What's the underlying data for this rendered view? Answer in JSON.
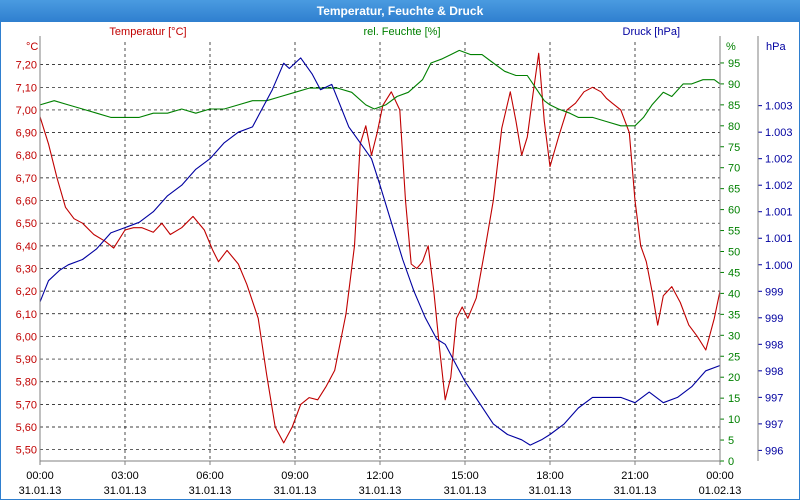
{
  "window": {
    "title": "Temperatur, Feuchte & Druck"
  },
  "colors": {
    "temperature": "#c00000",
    "humidity": "#008000",
    "pressure": "#0000a0",
    "grid": "#000000",
    "axis": "#808080"
  },
  "chart_data": {
    "type": "line",
    "title": "Temperatur, Feuchte & Druck",
    "grid": true,
    "x_ticks": [
      {
        "time": "00:00",
        "date": "31.01.13"
      },
      {
        "time": "03:00",
        "date": "31.01.13"
      },
      {
        "time": "06:00",
        "date": "31.01.13"
      },
      {
        "time": "09:00",
        "date": "31.01.13"
      },
      {
        "time": "12:00",
        "date": "31.01.13"
      },
      {
        "time": "15:00",
        "date": "31.01.13"
      },
      {
        "time": "18:00",
        "date": "31.01.13"
      },
      {
        "time": "21:00",
        "date": "31.01.13"
      },
      {
        "time": "00:00",
        "date": "01.02.13"
      }
    ],
    "x_range_hours": [
      0,
      24
    ],
    "axes": {
      "temperature": {
        "label": "Temperatur [°C]",
        "unit": "°C",
        "range": [
          5.45,
          7.3
        ],
        "ticks": [
          "5,50",
          "5,60",
          "5,70",
          "5,80",
          "5,90",
          "6,00",
          "6,10",
          "6,20",
          "6,30",
          "6,40",
          "6,50",
          "6,60",
          "6,70",
          "6,80",
          "6,90",
          "7,00",
          "7,10",
          "7,20"
        ],
        "tick_values": [
          5.5,
          5.6,
          5.7,
          5.8,
          5.9,
          6.0,
          6.1,
          6.2,
          6.3,
          6.4,
          6.5,
          6.6,
          6.7,
          6.8,
          6.9,
          7.0,
          7.1,
          7.2
        ]
      },
      "humidity": {
        "label": "rel. Feuchte [%]",
        "unit": "%",
        "range": [
          0,
          100
        ],
        "ticks": [
          "0",
          "5",
          "10",
          "15",
          "20",
          "25",
          "30",
          "35",
          "40",
          "45",
          "50",
          "55",
          "60",
          "65",
          "70",
          "75",
          "80",
          "85",
          "90",
          "95"
        ],
        "tick_values": [
          0,
          5,
          10,
          15,
          20,
          25,
          30,
          35,
          40,
          45,
          50,
          55,
          60,
          65,
          70,
          75,
          80,
          85,
          90,
          95
        ]
      },
      "pressure": {
        "label": "Druck [hPa]",
        "unit": "hPa",
        "range": [
          995.8,
          1003.7
        ],
        "ticks": [
          "996",
          "997",
          "997",
          "998",
          "998",
          "999",
          "999",
          "1.000",
          "1.001",
          "1.001",
          "1.002",
          "1.002",
          "1.003",
          "1.003"
        ],
        "tick_values": [
          996,
          996.5,
          997,
          997.5,
          998,
          998.5,
          999,
          999.5,
          1000,
          1000.5,
          1001,
          1001.5,
          1002,
          1002.5
        ]
      }
    },
    "series": [
      {
        "name": "Temperatur [°C]",
        "axis": "temperature",
        "points": [
          [
            0,
            6.97
          ],
          [
            0.3,
            6.85
          ],
          [
            0.6,
            6.7
          ],
          [
            0.9,
            6.57
          ],
          [
            1.2,
            6.52
          ],
          [
            1.5,
            6.5
          ],
          [
            1.9,
            6.45
          ],
          [
            2.3,
            6.42
          ],
          [
            2.6,
            6.39
          ],
          [
            3.0,
            6.47
          ],
          [
            3.3,
            6.48
          ],
          [
            3.6,
            6.48
          ],
          [
            4.0,
            6.46
          ],
          [
            4.3,
            6.5
          ],
          [
            4.6,
            6.45
          ],
          [
            5.0,
            6.48
          ],
          [
            5.4,
            6.53
          ],
          [
            5.8,
            6.47
          ],
          [
            6.1,
            6.38
          ],
          [
            6.3,
            6.33
          ],
          [
            6.6,
            6.38
          ],
          [
            7.0,
            6.32
          ],
          [
            7.3,
            6.23
          ],
          [
            7.7,
            6.08
          ],
          [
            8.0,
            5.83
          ],
          [
            8.3,
            5.6
          ],
          [
            8.6,
            5.53
          ],
          [
            8.9,
            5.6
          ],
          [
            9.2,
            5.7
          ],
          [
            9.5,
            5.73
          ],
          [
            9.8,
            5.72
          ],
          [
            10.1,
            5.78
          ],
          [
            10.4,
            5.85
          ],
          [
            10.8,
            6.1
          ],
          [
            11.1,
            6.4
          ],
          [
            11.3,
            6.85
          ],
          [
            11.5,
            6.93
          ],
          [
            11.7,
            6.8
          ],
          [
            11.9,
            6.9
          ],
          [
            12.1,
            7.02
          ],
          [
            12.4,
            7.08
          ],
          [
            12.7,
            7.0
          ],
          [
            12.9,
            6.6
          ],
          [
            13.1,
            6.32
          ],
          [
            13.3,
            6.3
          ],
          [
            13.5,
            6.33
          ],
          [
            13.7,
            6.4
          ],
          [
            13.9,
            6.2
          ],
          [
            14.1,
            5.95
          ],
          [
            14.3,
            5.72
          ],
          [
            14.5,
            5.82
          ],
          [
            14.7,
            6.08
          ],
          [
            14.9,
            6.13
          ],
          [
            15.1,
            6.08
          ],
          [
            15.4,
            6.17
          ],
          [
            15.7,
            6.38
          ],
          [
            16.0,
            6.6
          ],
          [
            16.3,
            6.92
          ],
          [
            16.6,
            7.08
          ],
          [
            16.8,
            6.95
          ],
          [
            17.0,
            6.8
          ],
          [
            17.2,
            6.88
          ],
          [
            17.4,
            7.07
          ],
          [
            17.6,
            7.25
          ],
          [
            17.8,
            6.95
          ],
          [
            18.0,
            6.75
          ],
          [
            18.3,
            6.88
          ],
          [
            18.6,
            7.0
          ],
          [
            18.9,
            7.03
          ],
          [
            19.2,
            7.08
          ],
          [
            19.5,
            7.1
          ],
          [
            19.8,
            7.08
          ],
          [
            20.0,
            7.05
          ],
          [
            20.2,
            7.03
          ],
          [
            20.5,
            7.0
          ],
          [
            20.8,
            6.9
          ],
          [
            21.0,
            6.6
          ],
          [
            21.2,
            6.4
          ],
          [
            21.4,
            6.33
          ],
          [
            21.6,
            6.2
          ],
          [
            21.8,
            6.05
          ],
          [
            22.0,
            6.18
          ],
          [
            22.3,
            6.22
          ],
          [
            22.6,
            6.15
          ],
          [
            22.9,
            6.05
          ],
          [
            23.2,
            6.0
          ],
          [
            23.5,
            5.94
          ],
          [
            23.8,
            6.08
          ],
          [
            24.0,
            6.2
          ]
        ]
      },
      {
        "name": "rel. Feuchte [%]",
        "axis": "humidity",
        "points": [
          [
            0,
            85
          ],
          [
            0.5,
            86
          ],
          [
            1.0,
            85
          ],
          [
            1.5,
            84
          ],
          [
            2.0,
            83
          ],
          [
            2.5,
            82
          ],
          [
            3.0,
            82
          ],
          [
            3.5,
            82
          ],
          [
            4.0,
            83
          ],
          [
            4.5,
            83
          ],
          [
            5.0,
            84
          ],
          [
            5.5,
            83
          ],
          [
            6.0,
            84
          ],
          [
            6.5,
            84
          ],
          [
            7.0,
            85
          ],
          [
            7.5,
            86
          ],
          [
            8.0,
            86
          ],
          [
            8.5,
            87
          ],
          [
            9.0,
            88
          ],
          [
            9.5,
            89
          ],
          [
            10.0,
            89
          ],
          [
            10.5,
            89
          ],
          [
            11.0,
            88
          ],
          [
            11.5,
            85
          ],
          [
            11.8,
            84
          ],
          [
            12.2,
            85
          ],
          [
            12.6,
            87
          ],
          [
            13.0,
            88
          ],
          [
            13.5,
            91
          ],
          [
            13.8,
            95
          ],
          [
            14.2,
            96
          ],
          [
            14.5,
            97
          ],
          [
            14.8,
            98
          ],
          [
            15.2,
            97
          ],
          [
            15.6,
            97
          ],
          [
            16.0,
            95
          ],
          [
            16.4,
            93
          ],
          [
            16.8,
            92
          ],
          [
            17.2,
            92
          ],
          [
            17.5,
            89
          ],
          [
            17.8,
            86
          ],
          [
            18.0,
            85
          ],
          [
            18.3,
            84
          ],
          [
            18.7,
            83
          ],
          [
            19.0,
            82
          ],
          [
            19.5,
            82
          ],
          [
            20.0,
            81
          ],
          [
            20.5,
            80
          ],
          [
            21.0,
            80
          ],
          [
            21.3,
            82
          ],
          [
            21.6,
            85
          ],
          [
            22.0,
            88
          ],
          [
            22.3,
            87
          ],
          [
            22.7,
            90
          ],
          [
            23.0,
            90
          ],
          [
            23.4,
            91
          ],
          [
            23.8,
            91
          ],
          [
            24.0,
            90
          ]
        ]
      },
      {
        "name": "Druck [hPa]",
        "axis": "pressure",
        "points": [
          [
            0,
            998.8
          ],
          [
            0.3,
            999.2
          ],
          [
            0.7,
            999.4
          ],
          [
            1.0,
            999.5
          ],
          [
            1.5,
            999.6
          ],
          [
            2.0,
            999.8
          ],
          [
            2.5,
            1000.1
          ],
          [
            3.0,
            1000.2
          ],
          [
            3.5,
            1000.3
          ],
          [
            4.0,
            1000.5
          ],
          [
            4.5,
            1000.8
          ],
          [
            5.0,
            1001.0
          ],
          [
            5.5,
            1001.3
          ],
          [
            6.0,
            1001.5
          ],
          [
            6.5,
            1001.8
          ],
          [
            7.0,
            1002.0
          ],
          [
            7.5,
            1002.1
          ],
          [
            7.8,
            1002.4
          ],
          [
            8.2,
            1002.8
          ],
          [
            8.6,
            1003.3
          ],
          [
            8.8,
            1003.2
          ],
          [
            9.2,
            1003.4
          ],
          [
            9.6,
            1003.1
          ],
          [
            9.9,
            1002.8
          ],
          [
            10.3,
            1002.9
          ],
          [
            10.6,
            1002.5
          ],
          [
            10.9,
            1002.1
          ],
          [
            11.3,
            1001.8
          ],
          [
            11.7,
            1001.5
          ],
          [
            12.0,
            1001.0
          ],
          [
            12.4,
            1000.3
          ],
          [
            12.8,
            999.6
          ],
          [
            13.2,
            999.0
          ],
          [
            13.6,
            998.5
          ],
          [
            14.0,
            998.1
          ],
          [
            14.3,
            998.0
          ],
          [
            14.6,
            997.7
          ],
          [
            15.0,
            997.3
          ],
          [
            15.5,
            996.9
          ],
          [
            16.0,
            996.5
          ],
          [
            16.5,
            996.3
          ],
          [
            17.0,
            996.2
          ],
          [
            17.3,
            996.1
          ],
          [
            17.7,
            996.2
          ],
          [
            18.0,
            996.3
          ],
          [
            18.5,
            996.5
          ],
          [
            19.0,
            996.8
          ],
          [
            19.5,
            997.0
          ],
          [
            20.0,
            997.0
          ],
          [
            20.5,
            997.0
          ],
          [
            21.0,
            996.9
          ],
          [
            21.5,
            997.1
          ],
          [
            22.0,
            996.9
          ],
          [
            22.5,
            997.0
          ],
          [
            23.0,
            997.2
          ],
          [
            23.5,
            997.5
          ],
          [
            24.0,
            997.6
          ]
        ]
      }
    ]
  }
}
